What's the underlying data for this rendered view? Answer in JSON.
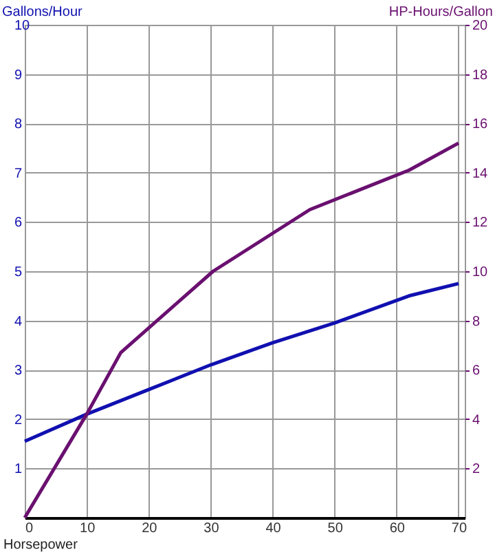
{
  "chart_data": {
    "type": "line",
    "xlabel": "Horsepower",
    "ylabel": "Gallons/Hour",
    "y2label": "HP-Hours/Gallon",
    "xlim": [
      0,
      71
    ],
    "xticks": [
      0,
      10,
      20,
      30,
      40,
      50,
      60,
      70
    ],
    "ylim": [
      0,
      10
    ],
    "yticks": [
      1,
      2,
      3,
      4,
      5,
      6,
      7,
      8,
      9,
      10
    ],
    "y2lim": [
      0,
      20
    ],
    "y2ticks": [
      2,
      4,
      6,
      8,
      10,
      12,
      14,
      16,
      18,
      20
    ],
    "grid": true,
    "marker": "none",
    "line_style": "solid",
    "series": [
      {
        "color": "#1010b0",
        "x": [
          0,
          10,
          20,
          30,
          40,
          50,
          62,
          70
        ],
        "values": [
          1.55,
          2.1,
          2.6,
          3.1,
          3.55,
          3.95,
          4.5,
          4.75
        ]
      },
      {
        "color": "#6a1070",
        "axis": "y2",
        "x": [
          0,
          10,
          15.5,
          30.4,
          46,
          62,
          70
        ],
        "values": [
          0,
          4.2,
          6.7,
          10.0,
          12.5,
          14.1,
          15.2
        ]
      }
    ]
  }
}
